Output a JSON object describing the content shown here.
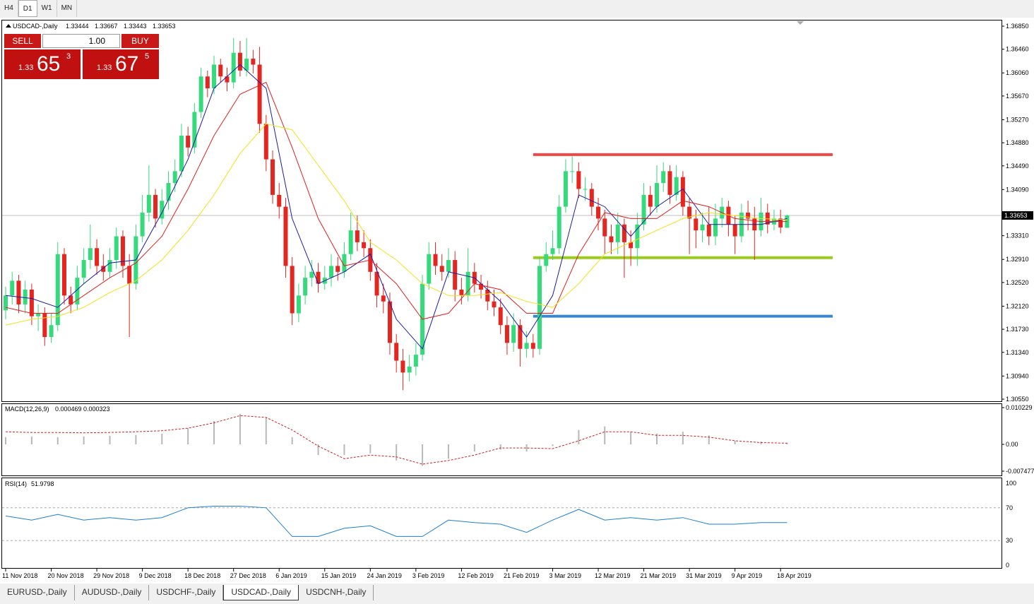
{
  "timeframe_tabs": [
    "H4",
    "D1",
    "W1",
    "MN"
  ],
  "symbol_tabs": [
    "EURUSD-,Daily",
    "AUDUSD-,Daily",
    "USDCHF-,Daily",
    "USDCAD-,Daily",
    "USDCNH-,Daily"
  ],
  "trade_panel": {
    "sell": "SELL",
    "buy": "BUY",
    "volume": "1.00",
    "sell_big": "1.33",
    "sell_pips": "65",
    "sell_frac": "3",
    "buy_big": "1.33",
    "buy_pips": "67",
    "buy_frac": "5"
  },
  "chart_data": {
    "type": "candlestick",
    "symbol_label": "USDCAD-,Daily",
    "up_color": "#36d97c",
    "down_color": "#e3261f",
    "ylim": [
      1.3055,
      1.3685
    ],
    "yticks": [
      {
        "value": 1.3685,
        "label": "1.36850"
      },
      {
        "value": 1.3646,
        "label": "1.36460"
      },
      {
        "value": 1.3606,
        "label": "1.36060"
      },
      {
        "value": 1.3567,
        "label": "1.35670"
      },
      {
        "value": 1.3527,
        "label": "1.35270"
      },
      {
        "value": 1.3488,
        "label": "1.34880"
      },
      {
        "value": 1.3449,
        "label": "1.34490"
      },
      {
        "value": 1.3409,
        "label": "1.34090"
      },
      {
        "value": 1.3331,
        "label": "1.33310"
      },
      {
        "value": 1.3291,
        "label": "1.32910"
      },
      {
        "value": 1.3252,
        "label": "1.32520"
      },
      {
        "value": 1.3212,
        "label": "1.32120"
      },
      {
        "value": 1.3173,
        "label": "1.31730"
      },
      {
        "value": 1.3134,
        "label": "1.31340"
      },
      {
        "value": 1.3094,
        "label": "1.30940"
      },
      {
        "value": 1.3055,
        "label": "1.30550"
      }
    ],
    "xticks": [
      {
        "value": 0,
        "label": "11 Nov 2018"
      },
      {
        "value": 7,
        "label": "20 Nov 2018"
      },
      {
        "value": 14,
        "label": "29 Nov 2018"
      },
      {
        "value": 21,
        "label": "9 Dec 2018"
      },
      {
        "value": 28,
        "label": "18 Dec 2018"
      },
      {
        "value": 35,
        "label": "27 Dec 2018"
      },
      {
        "value": 42,
        "label": "6 Jan 2019"
      },
      {
        "value": 49,
        "label": "15 Jan 2019"
      },
      {
        "value": 56,
        "label": "24 Jan 2019"
      },
      {
        "value": 63,
        "label": "3 Feb 2019"
      },
      {
        "value": 70,
        "label": "12 Feb 2019"
      },
      {
        "value": 77,
        "label": "21 Feb 2019"
      },
      {
        "value": 84,
        "label": "3 Mar 2019"
      },
      {
        "value": 91,
        "label": "12 Mar 2019"
      },
      {
        "value": 98,
        "label": "21 Mar 2019"
      },
      {
        "value": 105,
        "label": "31 Mar 2019"
      },
      {
        "value": 112,
        "label": "9 Apr 2019"
      },
      {
        "value": 119,
        "label": "18 Apr 2019"
      }
    ],
    "candles": [
      [
        1.3205,
        1.3245,
        1.319,
        1.323
      ],
      [
        1.323,
        1.327,
        1.3215,
        1.3255
      ],
      [
        1.3255,
        1.3265,
        1.32,
        1.3215
      ],
      [
        1.3215,
        1.3255,
        1.32,
        1.324
      ],
      [
        1.324,
        1.325,
        1.318,
        1.3195
      ],
      [
        1.3195,
        1.3215,
        1.317,
        1.32
      ],
      [
        1.32,
        1.321,
        1.3145,
        1.316
      ],
      [
        1.316,
        1.32,
        1.315,
        1.318
      ],
      [
        1.318,
        1.332,
        1.317,
        1.33
      ],
      [
        1.33,
        1.331,
        1.3215,
        1.323
      ],
      [
        1.323,
        1.3245,
        1.32,
        1.3215
      ],
      [
        1.3215,
        1.328,
        1.3205,
        1.326
      ],
      [
        1.326,
        1.331,
        1.325,
        1.329
      ],
      [
        1.329,
        1.335,
        1.3275,
        1.331
      ],
      [
        1.331,
        1.3325,
        1.3265,
        1.328
      ],
      [
        1.328,
        1.33,
        1.3255,
        1.327
      ],
      [
        1.327,
        1.331,
        1.326,
        1.329
      ],
      [
        1.329,
        1.3345,
        1.3275,
        1.333
      ],
      [
        1.333,
        1.334,
        1.326,
        1.328
      ],
      [
        1.328,
        1.33,
        1.316,
        1.325
      ],
      [
        1.325,
        1.335,
        1.324,
        1.333
      ],
      [
        1.333,
        1.34,
        1.332,
        1.337
      ],
      [
        1.337,
        1.345,
        1.3355,
        1.34
      ],
      [
        1.34,
        1.341,
        1.3345,
        1.336
      ],
      [
        1.336,
        1.341,
        1.335,
        1.339
      ],
      [
        1.339,
        1.344,
        1.3375,
        1.342
      ],
      [
        1.342,
        1.346,
        1.3405,
        1.344
      ],
      [
        1.344,
        1.352,
        1.343,
        1.35
      ],
      [
        1.35,
        1.3515,
        1.3465,
        1.348
      ],
      [
        1.348,
        1.3555,
        1.347,
        1.354
      ],
      [
        1.354,
        1.3615,
        1.353,
        1.36
      ],
      [
        1.36,
        1.361,
        1.3565,
        1.358
      ],
      [
        1.358,
        1.3635,
        1.357,
        1.362
      ],
      [
        1.362,
        1.363,
        1.359,
        1.36
      ],
      [
        1.36,
        1.3615,
        1.3575,
        1.359
      ],
      [
        1.359,
        1.3665,
        1.358,
        1.364
      ],
      [
        1.364,
        1.366,
        1.36,
        1.361
      ],
      [
        1.361,
        1.3665,
        1.36,
        1.363
      ],
      [
        1.363,
        1.3645,
        1.3605,
        1.362
      ],
      [
        1.362,
        1.365,
        1.3505,
        1.352
      ],
      [
        1.352,
        1.3535,
        1.344,
        1.346
      ],
      [
        1.346,
        1.3475,
        1.3385,
        1.34
      ],
      [
        1.34,
        1.342,
        1.336,
        1.338
      ],
      [
        1.338,
        1.3395,
        1.326,
        1.328
      ],
      [
        1.328,
        1.3295,
        1.318,
        1.32
      ],
      [
        1.32,
        1.325,
        1.3185,
        1.323
      ],
      [
        1.323,
        1.328,
        1.3215,
        1.326
      ],
      [
        1.326,
        1.329,
        1.3245,
        1.327
      ],
      [
        1.327,
        1.3285,
        1.3235,
        1.325
      ],
      [
        1.325,
        1.328,
        1.324,
        1.326
      ],
      [
        1.326,
        1.33,
        1.3245,
        1.328
      ],
      [
        1.328,
        1.3295,
        1.3255,
        1.327
      ],
      [
        1.327,
        1.332,
        1.326,
        1.33
      ],
      [
        1.33,
        1.337,
        1.329,
        1.334
      ],
      [
        1.334,
        1.3365,
        1.3305,
        1.332
      ],
      [
        1.332,
        1.334,
        1.3295,
        1.331
      ],
      [
        1.331,
        1.3325,
        1.3255,
        1.327
      ],
      [
        1.327,
        1.3285,
        1.321,
        1.323
      ],
      [
        1.323,
        1.325,
        1.32,
        1.322
      ],
      [
        1.322,
        1.3235,
        1.313,
        1.315
      ],
      [
        1.315,
        1.3165,
        1.31,
        1.312
      ],
      [
        1.312,
        1.314,
        1.307,
        1.31
      ],
      [
        1.31,
        1.313,
        1.3085,
        1.311
      ],
      [
        1.311,
        1.315,
        1.3095,
        1.313
      ],
      [
        1.313,
        1.3265,
        1.312,
        1.325
      ],
      [
        1.325,
        1.332,
        1.324,
        1.33
      ],
      [
        1.33,
        1.332,
        1.3265,
        1.328
      ],
      [
        1.328,
        1.33,
        1.3255,
        1.327
      ],
      [
        1.327,
        1.331,
        1.326,
        1.329
      ],
      [
        1.329,
        1.3305,
        1.322,
        1.324
      ],
      [
        1.324,
        1.326,
        1.3215,
        1.323
      ],
      [
        1.323,
        1.331,
        1.322,
        1.327
      ],
      [
        1.327,
        1.3285,
        1.3235,
        1.325
      ],
      [
        1.325,
        1.3265,
        1.3225,
        1.324
      ],
      [
        1.324,
        1.3255,
        1.3205,
        1.322
      ],
      [
        1.322,
        1.324,
        1.3195,
        1.321
      ],
      [
        1.321,
        1.3225,
        1.3165,
        1.318
      ],
      [
        1.318,
        1.3195,
        1.313,
        1.315
      ],
      [
        1.315,
        1.32,
        1.3135,
        1.318
      ],
      [
        1.318,
        1.319,
        1.311,
        1.314
      ],
      [
        1.314,
        1.317,
        1.3125,
        1.315
      ],
      [
        1.315,
        1.3165,
        1.3125,
        1.314
      ],
      [
        1.314,
        1.3295,
        1.313,
        1.328
      ],
      [
        1.328,
        1.332,
        1.327,
        1.33
      ],
      [
        1.33,
        1.334,
        1.329,
        1.331
      ],
      [
        1.331,
        1.34,
        1.33,
        1.338
      ],
      [
        1.338,
        1.346,
        1.337,
        1.344
      ],
      [
        1.344,
        1.3465,
        1.342,
        1.344
      ],
      [
        1.344,
        1.3455,
        1.3395,
        1.341
      ],
      [
        1.341,
        1.343,
        1.339,
        1.341
      ],
      [
        1.341,
        1.342,
        1.3365,
        1.338
      ],
      [
        1.338,
        1.3395,
        1.334,
        1.336
      ],
      [
        1.336,
        1.3375,
        1.33,
        1.333
      ],
      [
        1.333,
        1.335,
        1.33,
        1.332
      ],
      [
        1.332,
        1.337,
        1.33,
        1.335
      ],
      [
        1.335,
        1.336,
        1.326,
        1.332
      ],
      [
        1.332,
        1.334,
        1.328,
        1.331
      ],
      [
        1.331,
        1.337,
        1.328,
        1.335
      ],
      [
        1.335,
        1.342,
        1.334,
        1.34
      ],
      [
        1.34,
        1.3415,
        1.3365,
        1.338
      ],
      [
        1.338,
        1.345,
        1.337,
        1.342
      ],
      [
        1.342,
        1.3455,
        1.3405,
        1.344
      ],
      [
        1.344,
        1.345,
        1.3385,
        1.34
      ],
      [
        1.34,
        1.345,
        1.339,
        1.343
      ],
      [
        1.343,
        1.344,
        1.3365,
        1.338
      ],
      [
        1.338,
        1.3395,
        1.33,
        1.336
      ],
      [
        1.336,
        1.3375,
        1.331,
        1.334
      ],
      [
        1.334,
        1.337,
        1.332,
        1.335
      ],
      [
        1.335,
        1.338,
        1.3315,
        1.333
      ],
      [
        1.333,
        1.3385,
        1.3315,
        1.336
      ],
      [
        1.336,
        1.3395,
        1.3345,
        1.338
      ],
      [
        1.338,
        1.339,
        1.333,
        1.335
      ],
      [
        1.335,
        1.3365,
        1.33,
        1.333
      ],
      [
        1.333,
        1.3385,
        1.332,
        1.337
      ],
      [
        1.337,
        1.339,
        1.334,
        1.336
      ],
      [
        1.336,
        1.338,
        1.329,
        1.334
      ],
      [
        1.334,
        1.3395,
        1.333,
        1.337
      ],
      [
        1.337,
        1.3385,
        1.3335,
        1.335
      ],
      [
        1.335,
        1.3375,
        1.334,
        1.336
      ],
      [
        1.336,
        1.3375,
        1.3335,
        1.3345
      ],
      [
        1.33444,
        1.33667,
        1.33443,
        1.33653
      ]
    ],
    "moving_averages": {
      "x": [
        0,
        4,
        8,
        12,
        16,
        20,
        24,
        28,
        32,
        36,
        40,
        44,
        48,
        52,
        56,
        60,
        64,
        68,
        72,
        76,
        80,
        84,
        88,
        92,
        96,
        100,
        104,
        108,
        112,
        116,
        120
      ],
      "series": [
        {
          "color": "#1a1aa6",
          "values": [
            1.323,
            1.3225,
            1.321,
            1.325,
            1.3285,
            1.329,
            1.337,
            1.346,
            1.358,
            1.362,
            1.358,
            1.336,
            1.325,
            1.327,
            1.33,
            1.319,
            1.314,
            1.327,
            1.326,
            1.322,
            1.316,
            1.323,
            1.34,
            1.338,
            1.333,
            1.338,
            1.341,
            1.335,
            1.335,
            1.335,
            1.336
          ]
        },
        {
          "color": "#e02020",
          "values": [
            1.321,
            1.32,
            1.32,
            1.323,
            1.326,
            1.3285,
            1.333,
            1.341,
            1.35,
            1.357,
            1.359,
            1.348,
            1.336,
            1.328,
            1.329,
            1.325,
            1.319,
            1.32,
            1.325,
            1.324,
            1.32,
            1.32,
            1.33,
            1.337,
            1.336,
            1.336,
            1.339,
            1.338,
            1.336,
            1.3355,
            1.3355
          ]
        },
        {
          "color": "#f2e21a",
          "values": [
            1.318,
            1.319,
            1.3195,
            1.321,
            1.3235,
            1.3255,
            1.329,
            1.334,
            1.34,
            1.347,
            1.352,
            1.351,
            1.345,
            1.339,
            1.332,
            1.329,
            1.325,
            1.323,
            1.323,
            1.3235,
            1.322,
            1.321,
            1.325,
            1.33,
            1.332,
            1.334,
            1.336,
            1.337,
            1.3365,
            1.336,
            1.3358
          ]
        }
      ]
    },
    "levels": [
      {
        "value": 1.3468,
        "color": "#f04848",
        "x_range": [
          81,
          127
        ]
      },
      {
        "value": 1.3294,
        "color": "#9acd1a",
        "x_range": [
          81,
          127
        ]
      },
      {
        "value": 1.3195,
        "color": "#3a86d0",
        "x_range": [
          81,
          127
        ]
      }
    ],
    "macd": {
      "label": "MACD(12,26,9)",
      "ylim": [
        -0.007477,
        0.010229
      ],
      "yticks": [
        0.010229,
        {
          "value": 0,
          "label": "0.00"
        },
        -0.007477
      ],
      "x": [
        0,
        4,
        8,
        12,
        16,
        20,
        24,
        28,
        32,
        36,
        40,
        44,
        48,
        52,
        56,
        60,
        64,
        68,
        72,
        76,
        80,
        84,
        88,
        92,
        96,
        100,
        104,
        108,
        112,
        116,
        120
      ],
      "histogram": {
        "color": "#b8b8b8",
        "values": [
          0.002,
          0.0022,
          0.002,
          0.0022,
          0.0024,
          0.0026,
          0.003,
          0.0045,
          0.0065,
          0.0085,
          0.0075,
          0.002,
          -0.003,
          -0.003,
          -0.0025,
          -0.0045,
          -0.006,
          -0.004,
          -0.002,
          -0.0015,
          -0.002,
          -0.0005,
          0.004,
          0.005,
          0.0035,
          0.003,
          0.0035,
          0.0025,
          0.001,
          0.0008,
          0.000469
        ]
      },
      "signal": {
        "color": "#d02020",
        "values": [
          0.0035,
          0.0033,
          0.0033,
          0.0032,
          0.0033,
          0.0035,
          0.0038,
          0.0045,
          0.006,
          0.008,
          0.0075,
          0.004,
          -0.0005,
          -0.004,
          -0.003,
          -0.0035,
          -0.0055,
          -0.0045,
          -0.003,
          -0.001,
          -0.001,
          -0.0012,
          0.001,
          0.0035,
          0.0035,
          0.0025,
          0.0025,
          0.002,
          0.001,
          0.0005,
          0.000323
        ]
      }
    },
    "rsi": {
      "label": "RSI(14)",
      "ylim": [
        0,
        100
      ],
      "yticks": [
        100,
        70,
        30,
        0
      ],
      "color": "#1e7fd0",
      "x": [
        0,
        4,
        8,
        12,
        16,
        20,
        24,
        28,
        32,
        36,
        40,
        44,
        48,
        52,
        56,
        60,
        64,
        68,
        72,
        76,
        80,
        84,
        88,
        92,
        96,
        100,
        104,
        108,
        112,
        116,
        120
      ],
      "values": [
        60,
        55,
        62,
        55,
        58,
        55,
        58,
        70,
        72,
        72,
        70,
        35,
        35,
        45,
        48,
        35,
        35,
        55,
        52,
        50,
        40,
        55,
        68,
        55,
        58,
        55,
        58,
        50,
        50,
        52,
        51.9798
      ]
    }
  }
}
